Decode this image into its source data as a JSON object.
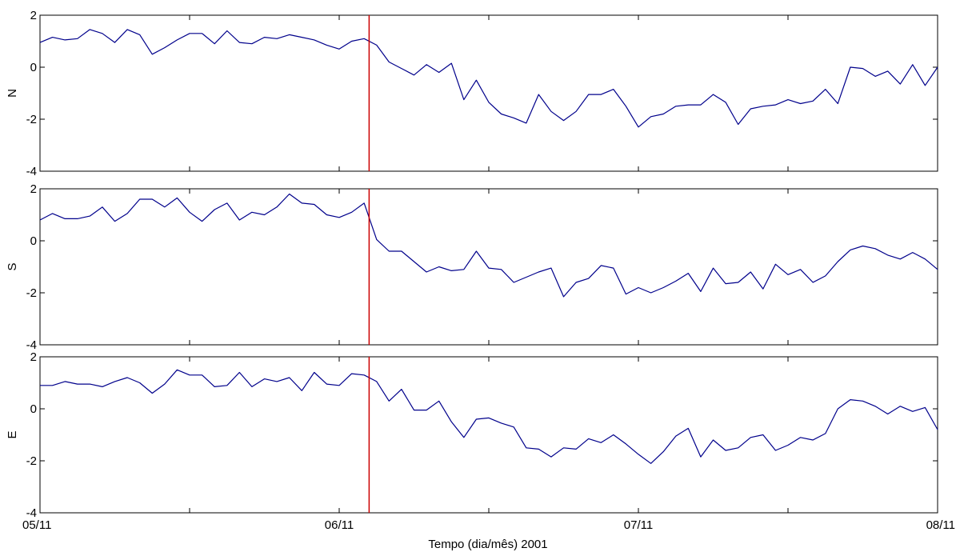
{
  "chart_data": {
    "type": "line",
    "xlabel": "Tempo (dia/mês) 2001",
    "x_tick_labels": [
      "05/11",
      "06/11",
      "07/11",
      "08/11"
    ],
    "x_tick_values": [
      0,
      1,
      2,
      3
    ],
    "x_range": [
      0,
      3
    ],
    "event_marker": {
      "x": 1.1,
      "color": "#cc0000"
    },
    "line_color": "#00008b",
    "grid": false,
    "panels": [
      {
        "ylabel": "N",
        "ylim": [
          -4,
          2
        ],
        "y_ticks": [
          -4,
          -2,
          0,
          2
        ],
        "values": [
          0.95,
          1.15,
          1.05,
          1.1,
          1.45,
          1.3,
          0.95,
          1.45,
          1.25,
          0.5,
          0.75,
          1.05,
          1.3,
          1.3,
          0.9,
          1.4,
          0.95,
          0.9,
          1.15,
          1.1,
          1.25,
          1.15,
          1.05,
          0.85,
          0.7,
          1.0,
          1.1,
          0.85,
          0.2,
          -0.05,
          -0.3,
          0.1,
          -0.2,
          0.15,
          -1.25,
          -0.5,
          -1.35,
          -1.8,
          -1.95,
          -2.15,
          -1.05,
          -1.7,
          -2.05,
          -1.7,
          -1.05,
          -1.05,
          -0.85,
          -1.5,
          -2.3,
          -1.9,
          -1.8,
          -1.5,
          -1.45,
          -1.45,
          -1.05,
          -1.35,
          -2.2,
          -1.6,
          -1.5,
          -1.45,
          -1.25,
          -1.4,
          -1.3,
          -0.85,
          -1.4,
          0.0,
          -0.05,
          -0.35,
          -0.15,
          -0.65,
          0.1,
          -0.7,
          0.0
        ]
      },
      {
        "ylabel": "S",
        "ylim": [
          -4,
          2
        ],
        "y_ticks": [
          -4,
          -2,
          0,
          2
        ],
        "values": [
          0.8,
          1.05,
          0.85,
          0.85,
          0.95,
          1.3,
          0.75,
          1.05,
          1.6,
          1.6,
          1.3,
          1.65,
          1.1,
          0.75,
          1.2,
          1.45,
          0.8,
          1.1,
          1.0,
          1.3,
          1.8,
          1.45,
          1.4,
          1.0,
          0.9,
          1.1,
          1.45,
          0.05,
          -0.4,
          -0.4,
          -0.8,
          -1.2,
          -1.0,
          -1.15,
          -1.1,
          -0.4,
          -1.05,
          -1.1,
          -1.6,
          -1.4,
          -1.2,
          -1.05,
          -2.15,
          -1.6,
          -1.45,
          -0.95,
          -1.05,
          -2.05,
          -1.8,
          -2.0,
          -1.8,
          -1.55,
          -1.25,
          -1.95,
          -1.05,
          -1.65,
          -1.6,
          -1.2,
          -1.85,
          -0.9,
          -1.3,
          -1.1,
          -1.6,
          -1.35,
          -0.8,
          -0.35,
          -0.2,
          -0.3,
          -0.55,
          -0.7,
          -0.45,
          -0.7,
          -1.1
        ]
      },
      {
        "ylabel": "E",
        "ylim": [
          -4,
          2
        ],
        "y_ticks": [
          -4,
          -2,
          0,
          2
        ],
        "values": [
          0.9,
          0.9,
          1.05,
          0.95,
          0.95,
          0.85,
          1.05,
          1.2,
          1.0,
          0.6,
          0.95,
          1.5,
          1.3,
          1.3,
          0.85,
          0.9,
          1.4,
          0.85,
          1.15,
          1.05,
          1.2,
          0.7,
          1.4,
          0.95,
          0.9,
          1.35,
          1.3,
          1.05,
          0.3,
          0.75,
          -0.05,
          -0.05,
          0.3,
          -0.5,
          -1.1,
          -0.4,
          -0.35,
          -0.55,
          -0.7,
          -1.5,
          -1.55,
          -1.85,
          -1.5,
          -1.55,
          -1.15,
          -1.3,
          -1.0,
          -1.35,
          -1.75,
          -2.1,
          -1.65,
          -1.05,
          -0.75,
          -1.85,
          -1.2,
          -1.6,
          -1.5,
          -1.1,
          -1.0,
          -1.6,
          -1.4,
          -1.1,
          -1.2,
          -0.95,
          0.0,
          0.35,
          0.3,
          0.1,
          -0.2,
          0.1,
          -0.1,
          0.05,
          -0.8
        ]
      }
    ]
  }
}
